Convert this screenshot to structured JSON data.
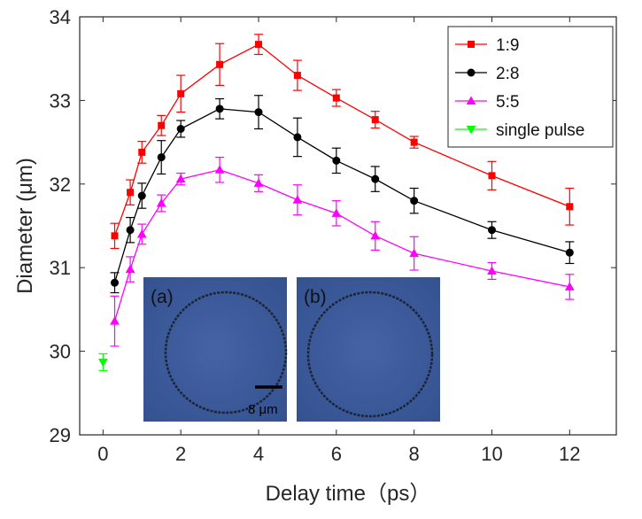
{
  "chart_data": {
    "type": "line",
    "title": "",
    "xlabel": "Delay time（ps）",
    "ylabel_text": "Diameter (",
    "ylabel_unit": "μm",
    "ylabel_close": ")",
    "xlim": [
      -0.6,
      13.2
    ],
    "ylim": [
      29,
      34
    ],
    "xticks": [
      0,
      2,
      4,
      6,
      8,
      10,
      12
    ],
    "yticks": [
      29,
      30,
      31,
      32,
      33,
      34
    ],
    "grid": false,
    "legend_position": "top-right",
    "series": [
      {
        "name": "1:9",
        "color": "#ff0000",
        "marker": "square",
        "x": [
          0.3,
          0.7,
          1,
          1.5,
          2,
          3,
          4,
          5,
          6,
          7,
          8,
          10,
          12
        ],
        "y": [
          31.38,
          31.9,
          32.38,
          32.7,
          33.08,
          33.43,
          33.67,
          33.3,
          33.03,
          32.77,
          32.5,
          32.1,
          31.73
        ],
        "err": [
          0.15,
          0.15,
          0.13,
          0.12,
          0.22,
          0.25,
          0.12,
          0.18,
          0.1,
          0.1,
          0.07,
          0.17,
          0.22
        ]
      },
      {
        "name": "2:8",
        "color": "#000000",
        "marker": "circle",
        "x": [
          0.3,
          0.7,
          1,
          1.5,
          2,
          3,
          4,
          5,
          6,
          7,
          8,
          10,
          12
        ],
        "y": [
          30.82,
          31.45,
          31.86,
          32.32,
          32.66,
          32.9,
          32.86,
          32.56,
          32.28,
          32.06,
          31.8,
          31.45,
          31.18
        ],
        "err": [
          0.12,
          0.15,
          0.15,
          0.2,
          0.1,
          0.12,
          0.2,
          0.23,
          0.15,
          0.15,
          0.15,
          0.1,
          0.13
        ]
      },
      {
        "name": "5:5",
        "color": "#ff00ff",
        "marker": "triangle-up",
        "x": [
          0.3,
          0.7,
          1,
          1.5,
          2,
          3,
          4,
          5,
          6,
          7,
          8,
          10,
          12
        ],
        "y": [
          30.36,
          30.98,
          31.4,
          31.77,
          32.06,
          32.17,
          32.01,
          31.81,
          31.65,
          31.38,
          31.17,
          30.96,
          30.77
        ],
        "err": [
          0.3,
          0.15,
          0.12,
          0.1,
          0.07,
          0.15,
          0.1,
          0.18,
          0.15,
          0.17,
          0.2,
          0.1,
          0.15
        ]
      },
      {
        "name": "single pulse",
        "color": "#00ff00",
        "marker": "triangle-down",
        "x": [
          0
        ],
        "y": [
          29.87
        ],
        "err": [
          0.1
        ]
      }
    ],
    "insets": [
      {
        "label": "(a)",
        "scale_bar": "8 μm",
        "color": "#3a5a9c"
      },
      {
        "label": "(b)",
        "color": "#3a5a9c"
      }
    ]
  }
}
